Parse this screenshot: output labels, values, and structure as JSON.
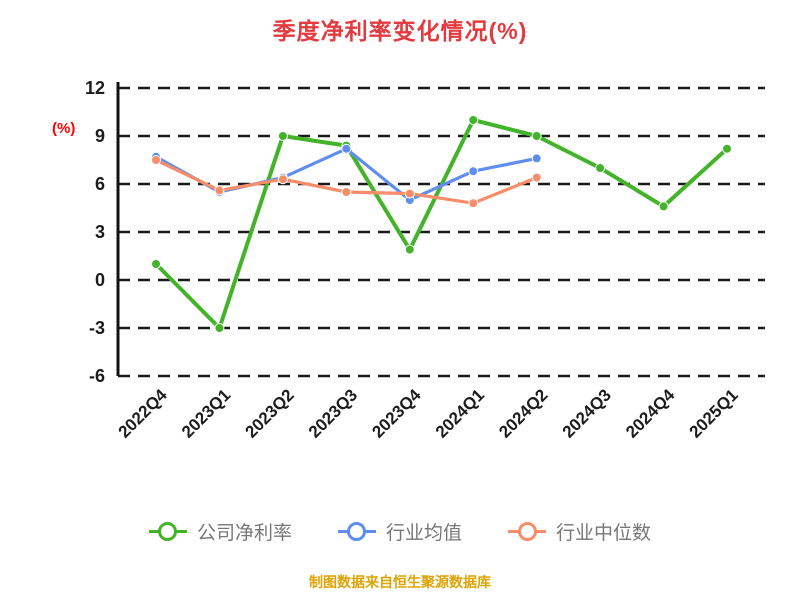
{
  "page": {
    "title": "季度净利率变化情况(%)",
    "footer": "制图数据来自恒生聚源数据库"
  },
  "colors": {
    "title": "#e23a3e",
    "ylabel": "#ff0000",
    "footer": "#dba407",
    "grid": "#1a1a1a",
    "axis": "#111111",
    "tick": "#1c1c1c",
    "legend_text": "#777777"
  },
  "chart_data": {
    "type": "line",
    "title": "季度净利率变化情况(%)",
    "xlabel": "",
    "ylabel": "(%)",
    "ylim": [
      -6,
      12
    ],
    "yticks": [
      12,
      9,
      6,
      3,
      0,
      -3,
      -6
    ],
    "grid": "horizontal-dashed",
    "legend_position": "bottom",
    "categories": [
      "2022Q4",
      "2023Q1",
      "2023Q2",
      "2023Q3",
      "2023Q4",
      "2024Q1",
      "2024Q2",
      "2024Q3",
      "2024Q4",
      "2025Q1"
    ],
    "series": [
      {
        "name": "公司净利率",
        "color": "#43b32a",
        "values": [
          1.0,
          -3.0,
          9.0,
          8.4,
          1.9,
          10.0,
          9.0,
          7.0,
          4.6,
          8.2
        ]
      },
      {
        "name": "行业均值",
        "color": "#5f8ef0",
        "values": [
          7.7,
          5.5,
          6.4,
          8.2,
          5.0,
          6.8,
          7.6,
          null,
          null,
          null
        ]
      },
      {
        "name": "行业中位数",
        "color": "#f98c69",
        "values": [
          7.5,
          5.6,
          6.3,
          5.5,
          5.4,
          4.8,
          6.4,
          null,
          null,
          null
        ]
      }
    ]
  }
}
